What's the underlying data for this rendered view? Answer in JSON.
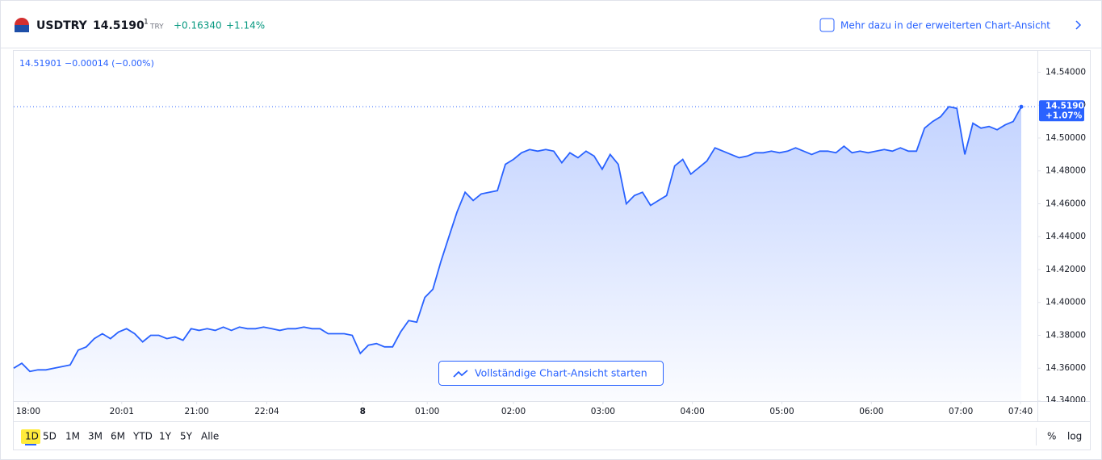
{
  "header": {
    "symbol": "USDTRY",
    "price": "14.5190",
    "price_sup": "1",
    "currency": "TRY",
    "change": "+0.16340",
    "change_pct": "+1.14%",
    "link": "Mehr dazu in der erweiterten Chart-Ansicht"
  },
  "chart_data": {
    "type": "area",
    "legend_text": "14.51901 −0.00014 (−0.00%)",
    "color": "#2962ff",
    "last_label": "14.51901",
    "last_change": "+1.07%",
    "button": "Vollständige Chart-Ansicht starten",
    "values": [
      14.36,
      14.363,
      14.358,
      14.359,
      14.359,
      14.36,
      14.361,
      14.362,
      14.371,
      14.373,
      14.378,
      14.381,
      14.378,
      14.382,
      14.384,
      14.381,
      14.376,
      14.38,
      14.38,
      14.378,
      14.379,
      14.377,
      14.384,
      14.383,
      14.384,
      14.383,
      14.385,
      14.383,
      14.385,
      14.384,
      14.384,
      14.385,
      14.384,
      14.383,
      14.384,
      14.384,
      14.385,
      14.384,
      14.384,
      14.381,
      14.381,
      14.381,
      14.38,
      14.369,
      14.374,
      14.375,
      14.373,
      14.373,
      14.382,
      14.389,
      14.388,
      14.403,
      14.408,
      14.425,
      14.44,
      14.455,
      14.467,
      14.462,
      14.466,
      14.467,
      14.468,
      14.484,
      14.487,
      14.491,
      14.493,
      14.492,
      14.493,
      14.492,
      14.485,
      14.491,
      14.488,
      14.492,
      14.489,
      14.481,
      14.49,
      14.484,
      14.46,
      14.465,
      14.467,
      14.459,
      14.462,
      14.465,
      14.483,
      14.487,
      14.478,
      14.482,
      14.486,
      14.494,
      14.492,
      14.49,
      14.488,
      14.489,
      14.491,
      14.491,
      14.492,
      14.491,
      14.492,
      14.494,
      14.492,
      14.49,
      14.492,
      14.492,
      14.491,
      14.495,
      14.491,
      14.492,
      14.491,
      14.492,
      14.493,
      14.492,
      14.494,
      14.492,
      14.492,
      14.506,
      14.51,
      14.513,
      14.519,
      14.518,
      14.49,
      14.509,
      14.506,
      14.507,
      14.505,
      14.508,
      14.51,
      14.51901
    ],
    "xlim": [
      0,
      127
    ],
    "xticks": [
      {
        "value": 1.8,
        "label": "18:00"
      },
      {
        "value": 13.4,
        "label": "20:01"
      },
      {
        "value": 22.7,
        "label": "21:00"
      },
      {
        "value": 31.4,
        "label": "22:04"
      },
      {
        "value": 43.3,
        "label": "8"
      },
      {
        "value": 51.3,
        "label": "01:00"
      },
      {
        "value": 62.0,
        "label": "02:00"
      },
      {
        "value": 73.1,
        "label": "03:00"
      },
      {
        "value": 84.2,
        "label": "04:00"
      },
      {
        "value": 95.3,
        "label": "05:00"
      },
      {
        "value": 106.4,
        "label": "06:00"
      },
      {
        "value": 117.5,
        "label": "07:00"
      },
      {
        "value": 124.9,
        "label": "07:40"
      }
    ],
    "ylim": [
      14.34,
      14.553
    ],
    "yticks": [
      {
        "value": 14.34,
        "label": "14.34000"
      },
      {
        "value": 14.36,
        "label": "14.36000"
      },
      {
        "value": 14.38,
        "label": "14.38000"
      },
      {
        "value": 14.4,
        "label": "14.40000"
      },
      {
        "value": 14.42,
        "label": "14.42000"
      },
      {
        "value": 14.44,
        "label": "14.44000"
      },
      {
        "value": 14.46,
        "label": "14.46000"
      },
      {
        "value": 14.48,
        "label": "14.48000"
      },
      {
        "value": 14.5,
        "label": "14.50000"
      },
      {
        "value": 14.52,
        "label": "14.52000"
      },
      {
        "value": 14.54,
        "label": "14.54000"
      }
    ]
  },
  "footer": {
    "ranges": [
      "1D",
      "5D",
      "1M",
      "3M",
      "6M",
      "YTD",
      "1Y",
      "5Y",
      "Alle"
    ],
    "percent": "%",
    "log": "log"
  }
}
